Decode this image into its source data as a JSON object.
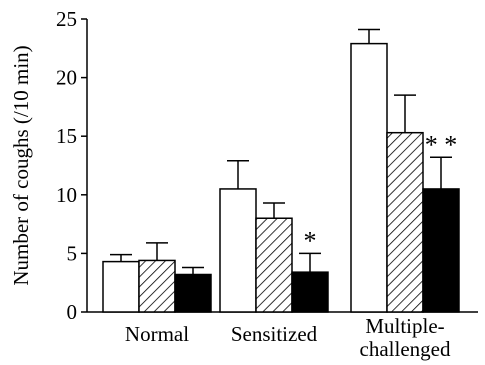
{
  "chart_data": {
    "type": "bar",
    "title": "",
    "xlabel": "",
    "ylabel": "Number of coughs (/10 min)",
    "ylim": [
      0,
      25
    ],
    "yticks": [
      0,
      5,
      10,
      15,
      20,
      25
    ],
    "grid": false,
    "categories": [
      {
        "lines": [
          "Normal"
        ]
      },
      {
        "lines": [
          "Sensitized"
        ]
      },
      {
        "lines": [
          "Multiple-",
          "challenged"
        ]
      }
    ],
    "series": [
      {
        "fill": "white",
        "color": "#ffffff",
        "values": [
          4.3,
          10.5,
          22.9
        ],
        "errors": [
          0.6,
          2.4,
          1.2
        ]
      },
      {
        "fill": "hatched",
        "color": "#000000",
        "values": [
          4.4,
          8.0,
          15.3
        ],
        "errors": [
          1.5,
          1.3,
          3.2
        ]
      },
      {
        "fill": "black",
        "color": "#000000",
        "values": [
          3.2,
          3.4,
          10.5
        ],
        "errors": [
          0.6,
          1.6,
          2.7
        ]
      }
    ],
    "annotations": [
      {
        "text": "*",
        "category": 1,
        "series": 2
      },
      {
        "text": "* *",
        "category": 2,
        "series": 2
      }
    ]
  }
}
